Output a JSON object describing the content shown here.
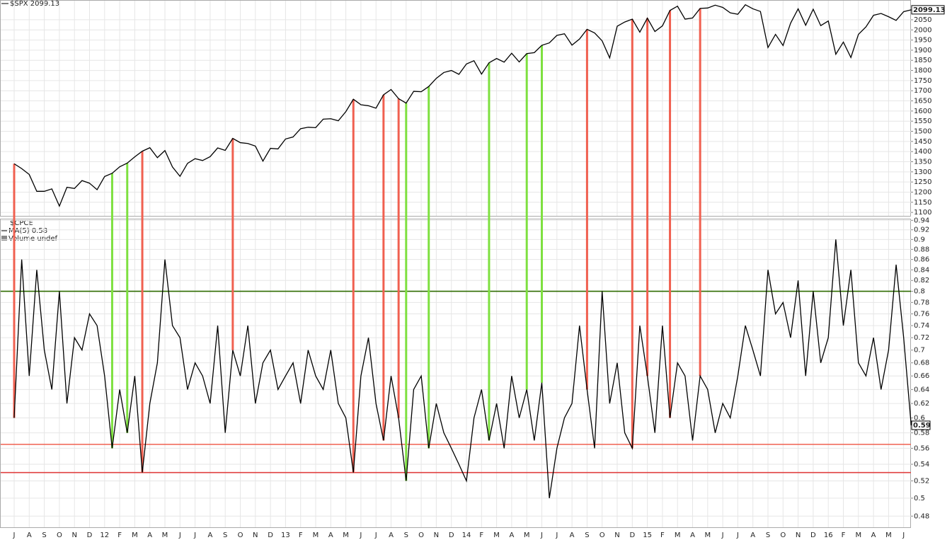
{
  "chart_data": [
    {
      "type": "line",
      "log": false,
      "grid": true,
      "series": [
        {
          "name": "$SPX 2099.13",
          "color": "#000000",
          "values": [
            1340,
            1316,
            1287,
            1204,
            1204,
            1216,
            1131,
            1224,
            1218,
            1257,
            1244,
            1212,
            1277,
            1293,
            1325,
            1343,
            1374,
            1402,
            1419,
            1370,
            1405,
            1324,
            1278,
            1342,
            1365,
            1356,
            1375,
            1418,
            1406,
            1465,
            1444,
            1440,
            1427,
            1353,
            1416,
            1413,
            1462,
            1472,
            1513,
            1520,
            1518,
            1560,
            1562,
            1552,
            1597,
            1658,
            1631,
            1626,
            1614,
            1680,
            1706,
            1661,
            1639,
            1697,
            1695,
            1721,
            1761,
            1790,
            1800,
            1781,
            1832,
            1848,
            1782,
            1838,
            1859,
            1841,
            1885,
            1842,
            1883,
            1888,
            1924,
            1936,
            1973,
            1981,
            1925,
            1955,
            2003,
            1985,
            1946,
            1862,
            2018,
            2039,
            2053,
            1989,
            2058,
            1992,
            2020,
            2096,
            2117,
            2053,
            2059,
            2106,
            2108,
            2122,
            2111,
            2084,
            2077,
            2124,
            2104,
            2091,
            1913,
            1978,
            1923,
            2033,
            2104,
            2023,
            2102,
            2021,
            2044,
            1880,
            1940,
            1864,
            1978,
            2015,
            2072,
            2081,
            2065,
            2047,
            2090,
            2099.13
          ]
        }
      ],
      "ylim": [
        1083,
        2144
      ],
      "yticks": [
        1100,
        1150,
        1200,
        1250,
        1300,
        1350,
        1400,
        1450,
        1500,
        1550,
        1600,
        1650,
        1700,
        1750,
        1800,
        1850,
        1900,
        1950,
        2000,
        2050
      ],
      "signal_colors": [
        "#f06050",
        null,
        null,
        null,
        null,
        null,
        null,
        null,
        null,
        null,
        null,
        null,
        null,
        "#7ee040",
        null,
        "#7ee040",
        null,
        "#f06050",
        null,
        null,
        null,
        null,
        null,
        null,
        null,
        null,
        null,
        null,
        null,
        "#f06050",
        null,
        null,
        null,
        null,
        null,
        null,
        null,
        null,
        null,
        null,
        null,
        null,
        null,
        null,
        null,
        "#f06050",
        null,
        null,
        null,
        "#f06050",
        null,
        "#f06050",
        "#7ee040",
        null,
        null,
        "#7ee040",
        null,
        null,
        null,
        null,
        null,
        null,
        null,
        "#7ee040",
        null,
        null,
        null,
        null,
        "#7ee040",
        null,
        "#7ee040",
        null,
        null,
        null,
        null,
        null,
        "#f06050",
        null,
        null,
        null,
        null,
        null,
        "#f06050",
        null,
        "#f06050",
        null,
        null,
        "#f06050",
        null,
        null,
        null,
        "#f06050",
        null,
        null,
        null,
        null,
        null,
        null,
        null,
        null,
        null,
        null,
        null,
        null,
        null,
        null,
        null,
        null,
        null,
        null,
        null,
        null,
        null,
        null,
        null,
        null,
        null,
        null,
        null,
        null
      ]
    },
    {
      "type": "line",
      "log": true,
      "grid": true,
      "legend_notes": [
        "MA(5) 0.58",
        "Volume undef"
      ],
      "series": [
        {
          "name": "$CPCE",
          "color": "#000000",
          "values": [
            0.6,
            0.86,
            0.66,
            0.84,
            0.7,
            0.64,
            0.8,
            0.62,
            0.72,
            0.7,
            0.76,
            0.74,
            0.66,
            0.56,
            0.64,
            0.58,
            0.66,
            0.53,
            0.62,
            0.68,
            0.86,
            0.74,
            0.72,
            0.64,
            0.68,
            0.66,
            0.62,
            0.74,
            0.58,
            0.7,
            0.66,
            0.74,
            0.62,
            0.68,
            0.7,
            0.64,
            0.66,
            0.68,
            0.62,
            0.7,
            0.66,
            0.64,
            0.7,
            0.62,
            0.6,
            0.53,
            0.66,
            0.72,
            0.62,
            0.57,
            0.66,
            0.6,
            0.52,
            0.64,
            0.66,
            0.56,
            0.62,
            0.58,
            0.56,
            0.54,
            0.52,
            0.6,
            0.64,
            0.57,
            0.62,
            0.56,
            0.66,
            0.6,
            0.64,
            0.57,
            0.65,
            0.5,
            0.56,
            0.6,
            0.62,
            0.74,
            0.64,
            0.56,
            0.8,
            0.62,
            0.68,
            0.58,
            0.56,
            0.74,
            0.66,
            0.58,
            0.74,
            0.6,
            0.68,
            0.66,
            0.57,
            0.66,
            0.64,
            0.58,
            0.62,
            0.6,
            0.66,
            0.74,
            0.7,
            0.66,
            0.84,
            0.76,
            0.78,
            0.72,
            0.82,
            0.66,
            0.8,
            0.68,
            0.72,
            0.9,
            0.74,
            0.84,
            0.68,
            0.66,
            0.72,
            0.64,
            0.7,
            0.85,
            0.72,
            0.59
          ]
        }
      ],
      "ylim": [
        0.468,
        0.942
      ],
      "yticks": [
        0.48,
        0.5,
        0.52,
        0.54,
        0.56,
        0.58,
        0.6,
        0.62,
        0.64,
        0.66,
        0.68,
        0.7,
        0.72,
        0.74,
        0.76,
        0.78,
        0.8,
        0.82,
        0.84,
        0.86,
        0.88,
        0.9,
        0.92,
        0.94
      ],
      "hlines": [
        {
          "value": 0.8,
          "color": "#2e6b00"
        },
        {
          "value": 0.565,
          "color": "#f06050"
        },
        {
          "value": 0.53,
          "color": "#e04040"
        }
      ],
      "categories": [
        "J",
        null,
        "A",
        null,
        "S",
        null,
        "O",
        null,
        "N",
        null,
        "D",
        null,
        "12",
        null,
        "F",
        null,
        "M",
        null,
        "A",
        null,
        "M",
        null,
        "J",
        null,
        "J",
        null,
        "A",
        null,
        "S",
        null,
        "O",
        null,
        "N",
        null,
        "D",
        null,
        "13",
        null,
        "F",
        null,
        "M",
        null,
        "A",
        null,
        "M",
        null,
        "J",
        null,
        "J",
        null,
        "A",
        null,
        "S",
        null,
        "O",
        null,
        "N",
        null,
        "D",
        null,
        "14",
        null,
        "F",
        null,
        "M",
        null,
        "A",
        null,
        "M",
        null,
        "J",
        null,
        "J",
        null,
        "A",
        null,
        "S",
        null,
        "O",
        null,
        "N",
        null,
        "D",
        null,
        "15",
        null,
        "F",
        null,
        "M",
        null,
        "A",
        null,
        "M",
        null,
        "J",
        null,
        "J",
        null,
        "A",
        null,
        "S",
        null,
        "O",
        null,
        "N",
        null,
        "D",
        null,
        "16",
        null,
        "F",
        null,
        "M",
        null,
        "A",
        null,
        "M",
        null,
        "J",
        null
      ]
    }
  ]
}
